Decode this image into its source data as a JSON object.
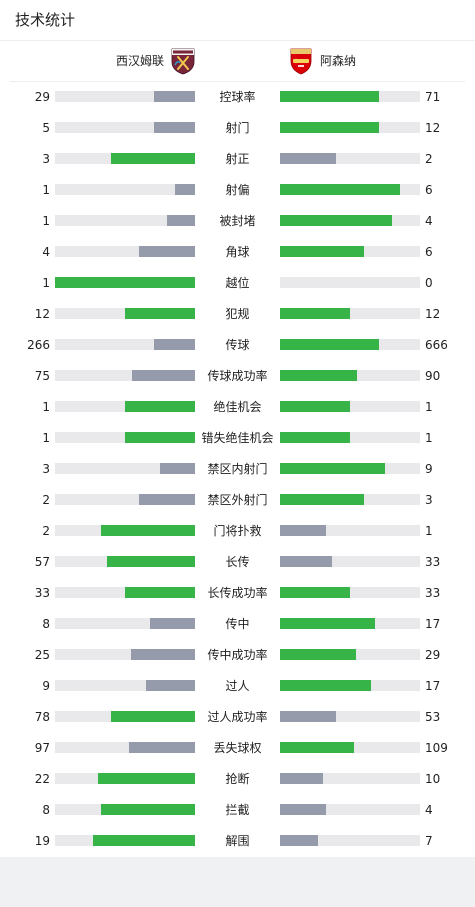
{
  "header": {
    "title": "技术统计"
  },
  "teams": {
    "home": {
      "name": "西汉姆联",
      "crest_icon": "west-ham-crest-icon"
    },
    "away": {
      "name": "阿森纳",
      "crest_icon": "arsenal-crest-icon"
    }
  },
  "colors": {
    "leading": "#37b447",
    "trailing": "#959bab",
    "track": "#e9e9eb"
  },
  "stats": [
    {
      "label": "控球率",
      "home": "29",
      "away": "71",
      "home_share": 0.29,
      "away_share": 0.71,
      "leader": "away"
    },
    {
      "label": "射门",
      "home": "5",
      "away": "12",
      "home_share": 0.29,
      "away_share": 0.71,
      "leader": "away"
    },
    {
      "label": "射正",
      "home": "3",
      "away": "2",
      "home_share": 0.6,
      "away_share": 0.4,
      "leader": "home"
    },
    {
      "label": "射偏",
      "home": "1",
      "away": "6",
      "home_share": 0.14,
      "away_share": 0.86,
      "leader": "away"
    },
    {
      "label": "被封堵",
      "home": "1",
      "away": "4",
      "home_share": 0.2,
      "away_share": 0.8,
      "leader": "away"
    },
    {
      "label": "角球",
      "home": "4",
      "away": "6",
      "home_share": 0.4,
      "away_share": 0.6,
      "leader": "away"
    },
    {
      "label": "越位",
      "home": "1",
      "away": "0",
      "home_share": 1.0,
      "away_share": 0.0,
      "leader": "home"
    },
    {
      "label": "犯规",
      "home": "12",
      "away": "12",
      "home_share": 0.5,
      "away_share": 0.5,
      "leader": "both"
    },
    {
      "label": "传球",
      "home": "266",
      "away": "666",
      "home_share": 0.29,
      "away_share": 0.71,
      "leader": "away"
    },
    {
      "label": "传球成功率",
      "home": "75",
      "away": "90",
      "home_share": 0.45,
      "away_share": 0.55,
      "leader": "away"
    },
    {
      "label": "绝佳机会",
      "home": "1",
      "away": "1",
      "home_share": 0.5,
      "away_share": 0.5,
      "leader": "both"
    },
    {
      "label": "错失绝佳机会",
      "home": "1",
      "away": "1",
      "home_share": 0.5,
      "away_share": 0.5,
      "leader": "both"
    },
    {
      "label": "禁区内射门",
      "home": "3",
      "away": "9",
      "home_share": 0.25,
      "away_share": 0.75,
      "leader": "away"
    },
    {
      "label": "禁区外射门",
      "home": "2",
      "away": "3",
      "home_share": 0.4,
      "away_share": 0.6,
      "leader": "away"
    },
    {
      "label": "门将扑救",
      "home": "2",
      "away": "1",
      "home_share": 0.67,
      "away_share": 0.33,
      "leader": "home"
    },
    {
      "label": "长传",
      "home": "57",
      "away": "33",
      "home_share": 0.63,
      "away_share": 0.37,
      "leader": "home"
    },
    {
      "label": "长传成功率",
      "home": "33",
      "away": "33",
      "home_share": 0.5,
      "away_share": 0.5,
      "leader": "both"
    },
    {
      "label": "传中",
      "home": "8",
      "away": "17",
      "home_share": 0.32,
      "away_share": 0.68,
      "leader": "away"
    },
    {
      "label": "传中成功率",
      "home": "25",
      "away": "29",
      "home_share": 0.46,
      "away_share": 0.54,
      "leader": "away"
    },
    {
      "label": "过人",
      "home": "9",
      "away": "17",
      "home_share": 0.35,
      "away_share": 0.65,
      "leader": "away"
    },
    {
      "label": "过人成功率",
      "home": "78",
      "away": "53",
      "home_share": 0.6,
      "away_share": 0.4,
      "leader": "home"
    },
    {
      "label": "丢失球权",
      "home": "97",
      "away": "109",
      "home_share": 0.47,
      "away_share": 0.53,
      "leader": "away"
    },
    {
      "label": "抢断",
      "home": "22",
      "away": "10",
      "home_share": 0.69,
      "away_share": 0.31,
      "leader": "home"
    },
    {
      "label": "拦截",
      "home": "8",
      "away": "4",
      "home_share": 0.67,
      "away_share": 0.33,
      "leader": "home"
    },
    {
      "label": "解围",
      "home": "19",
      "away": "7",
      "home_share": 0.73,
      "away_share": 0.27,
      "leader": "home"
    }
  ]
}
